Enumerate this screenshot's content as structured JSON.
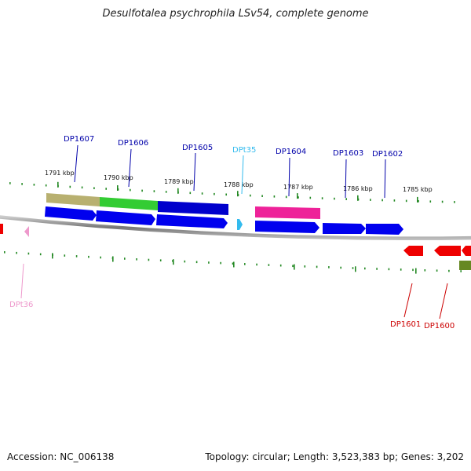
{
  "title": "Desulfotalea psychrophila LSv54, complete genome",
  "footer": {
    "accession": "Accession: NC_006138",
    "summary": "Topology: circular; Length: 3,523,383 bp; Genes: 3,202"
  },
  "scale_labels": [
    {
      "text": "1791 kbp",
      "kbp": 1791
    },
    {
      "text": "1790 kbp",
      "kbp": 1790
    },
    {
      "text": "1789 kbp",
      "kbp": 1789
    },
    {
      "text": "1788 kbp",
      "kbp": 1788
    },
    {
      "text": "1787 kbp",
      "kbp": 1787
    },
    {
      "text": "1786 kbp",
      "kbp": 1786
    },
    {
      "text": "1785 kbp",
      "kbp": 1785
    }
  ],
  "gene_labels": [
    {
      "text": "DP1607",
      "color": "#0000aa"
    },
    {
      "text": "DP1606",
      "color": "#0000aa"
    },
    {
      "text": "DP1605",
      "color": "#0000aa"
    },
    {
      "text": "DPt35",
      "color": "#33bbee"
    },
    {
      "text": "DP1604",
      "color": "#0000aa"
    },
    {
      "text": "DP1603",
      "color": "#0000aa"
    },
    {
      "text": "DP1602",
      "color": "#0000aa"
    },
    {
      "text": "DPt36",
      "color": "#ee99cc"
    },
    {
      "text": "DP1601",
      "color": "#cc0000"
    },
    {
      "text": "DP1600",
      "color": "#cc0000"
    }
  ],
  "colors": {
    "cds_forward": "#0000ee",
    "cds_reverse": "#ee0000",
    "trna": "#33bbee",
    "trna_reverse": "#ee99cc",
    "backbone": "#888888",
    "ticks": "#228822",
    "feature_olive": "#b8b070",
    "feature_green": "#33cc33",
    "feature_blue": "#0000cc",
    "feature_magenta": "#ee2299",
    "feature_darkgreen": "#668822"
  }
}
